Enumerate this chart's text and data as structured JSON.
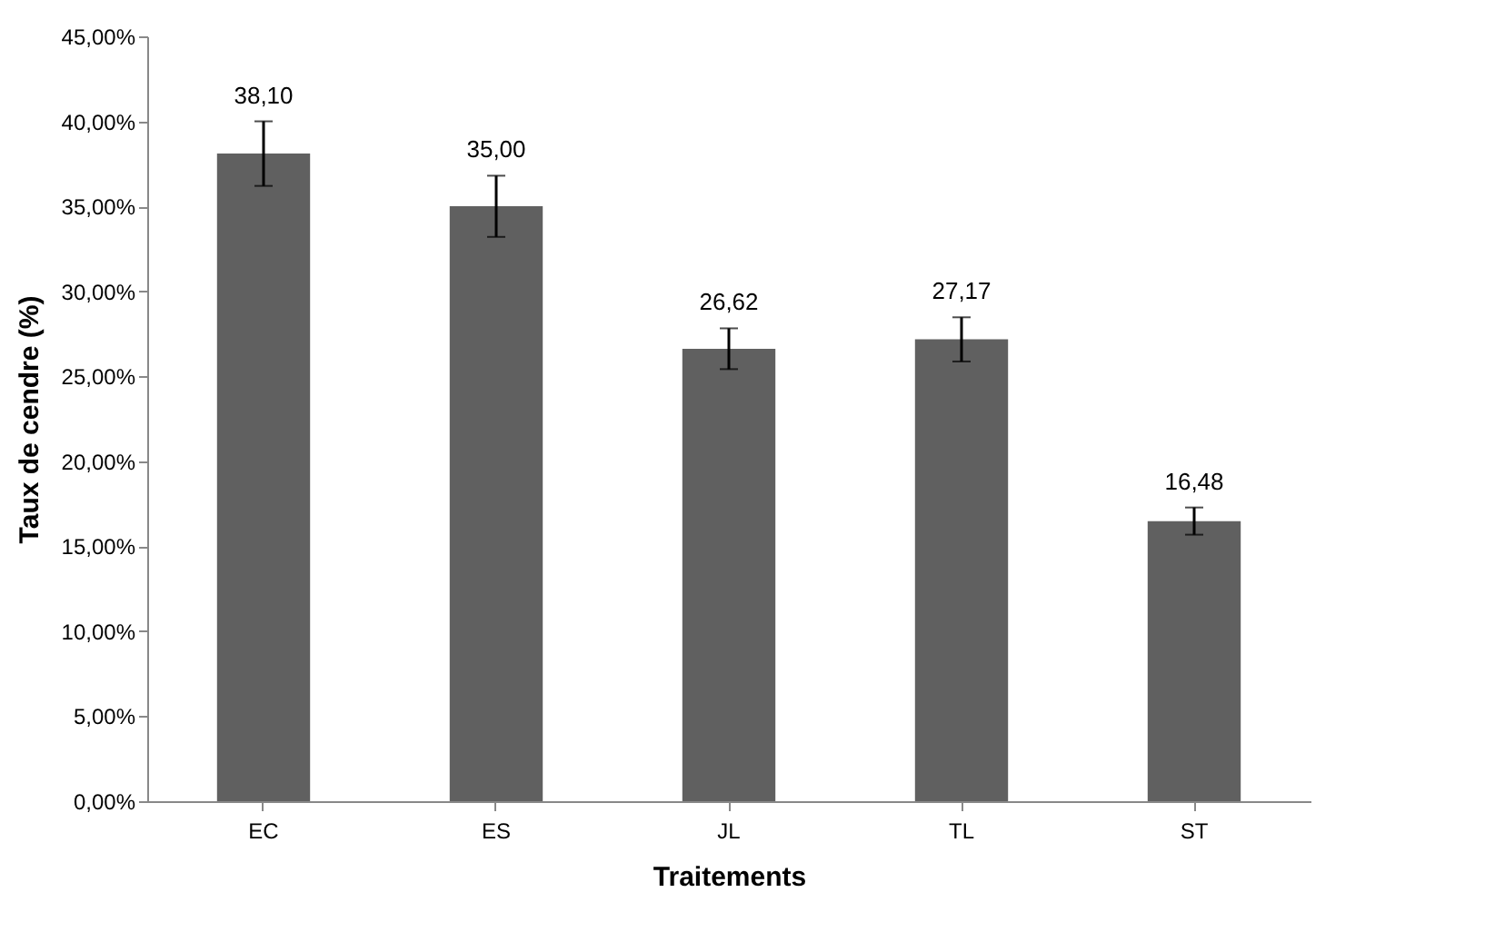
{
  "chart_data": {
    "type": "bar",
    "xlabel": "Traitements",
    "ylabel": "Taux de cendre (%)",
    "categories": [
      "EC",
      "ES",
      "JL",
      "TL",
      "ST"
    ],
    "values": [
      38.1,
      35.0,
      26.62,
      27.17,
      16.48
    ],
    "errors": [
      1.9,
      1.8,
      1.2,
      1.3,
      0.8
    ],
    "value_labels": [
      "38,10",
      "35,00",
      "26,62",
      "27,17",
      "16,48"
    ],
    "color": "#606060",
    "ylim": [
      0,
      45
    ],
    "yticks": [
      {
        "value": 0,
        "label": "0,00%"
      },
      {
        "value": 5,
        "label": "5,00%"
      },
      {
        "value": 10,
        "label": "10,00%"
      },
      {
        "value": 15,
        "label": "15,00%"
      },
      {
        "value": 20,
        "label": "20,00%"
      },
      {
        "value": 25,
        "label": "25,00%"
      },
      {
        "value": 30,
        "label": "30,00%"
      },
      {
        "value": 35,
        "label": "35,00%"
      },
      {
        "value": 40,
        "label": "40,00%"
      },
      {
        "value": 45,
        "label": "45,00%"
      }
    ],
    "grid": false
  }
}
